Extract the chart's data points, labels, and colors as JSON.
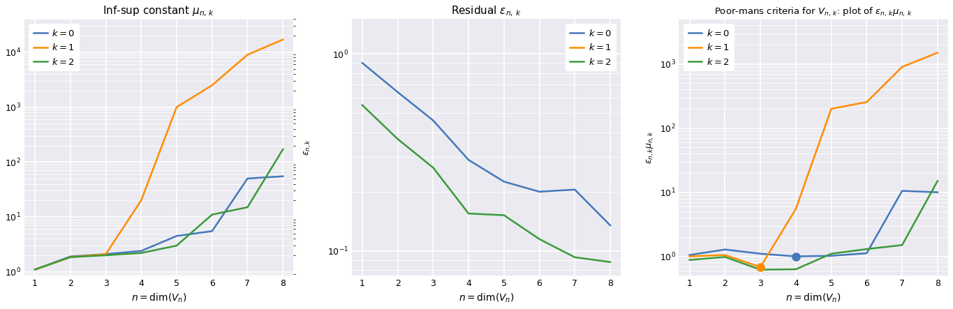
{
  "n": [
    1,
    2,
    3,
    4,
    5,
    6,
    7,
    8
  ],
  "plot1": {
    "title": "Inf-sup constant $\\mu_{n,\\,k}$",
    "right_ylabel": "$\\varepsilon_{n,k}$",
    "xlabel": "$n = \\dim(V_n)$",
    "ylim": [
      0.85,
      40000
    ],
    "k0": [
      1.1,
      1.9,
      2.1,
      2.4,
      4.5,
      5.5,
      50,
      55
    ],
    "k1": [
      1.1,
      1.85,
      2.1,
      20,
      1000,
      2500,
      9000,
      17000
    ],
    "k2": [
      1.1,
      1.85,
      2.0,
      2.2,
      3.0,
      11,
      15,
      170
    ]
  },
  "plot2": {
    "title": "Residual $\\varepsilon_{n,\\,k}$",
    "xlabel": "$n = \\dim(V_n)$",
    "ylim": [
      0.075,
      1.5
    ],
    "k0": [
      0.9,
      0.64,
      0.46,
      0.29,
      0.225,
      0.2,
      0.205,
      0.135
    ],
    "k2": [
      0.55,
      0.37,
      0.265,
      0.155,
      0.152,
      0.115,
      0.093,
      0.088
    ]
  },
  "plot3": {
    "title": "Poor-mans criteria for $V_{n,\\,k}$: plot of $\\varepsilon_{n,\\,k}\\mu_{n,\\,k}$",
    "ylabel": "$\\varepsilon_{n,k}\\mu_{n,k}$",
    "xlabel": "$n = \\dim(V_n)$",
    "ylim": [
      0.5,
      5000
    ],
    "k0": [
      1.05,
      1.28,
      1.1,
      1.0,
      1.02,
      1.12,
      10.5,
      10.0
    ],
    "k1": [
      1.0,
      1.05,
      0.68,
      5.5,
      200,
      255,
      900,
      1500
    ],
    "k2": [
      0.88,
      0.98,
      0.62,
      0.63,
      1.1,
      1.3,
      1.5,
      15
    ],
    "dot_k0_n": 4,
    "dot_k0_val": 1.0,
    "dot_k1_n": 3,
    "dot_k1_val": 0.68
  },
  "color_k0": "#4477bb",
  "color_k1": "#ff8c00",
  "color_k2": "#3a9a3a",
  "bg_color": "#eaeaf0",
  "grid_color": "#ffffff",
  "lw": 1.8
}
